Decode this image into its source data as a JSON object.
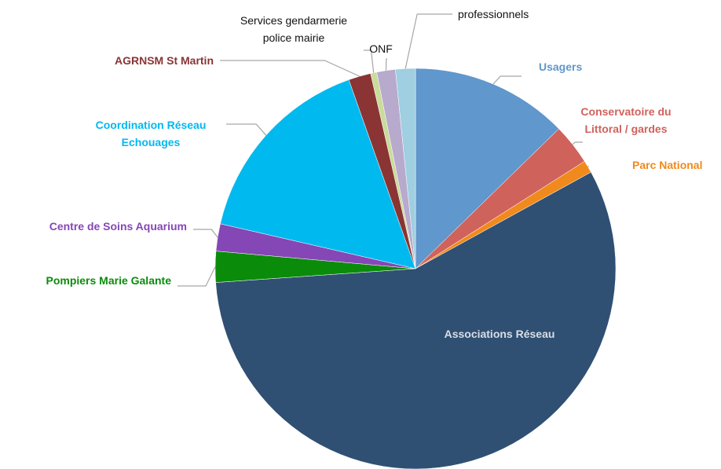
{
  "chart_data": {
    "type": "pie",
    "categories": [
      "Usagers",
      "Conservatoire du\nLittoral / gardes",
      "Parc National",
      "Associations Réseau",
      "Pompiers Marie Galante",
      "Centre de Soins Aquarium",
      "Coordination Réseau\nEchouages",
      "AGRNSM St Martin",
      "Services gendarmerie\npolice mairie",
      "ONF",
      "professionnels"
    ],
    "values": [
      12.7,
      3.3,
      1,
      56.9,
      2.5,
      2.2,
      16,
      1.8,
      0.5,
      1.5,
      1.6
    ],
    "colors": [
      "#6097cc",
      "#d0625c",
      "#f08a1c",
      "#2f5073",
      "#0a8c0a",
      "#8547b5",
      "#00b9ef",
      "#8a3434",
      "#c9dc9c",
      "#b7aacd",
      "#9fcfe0"
    ]
  }
}
